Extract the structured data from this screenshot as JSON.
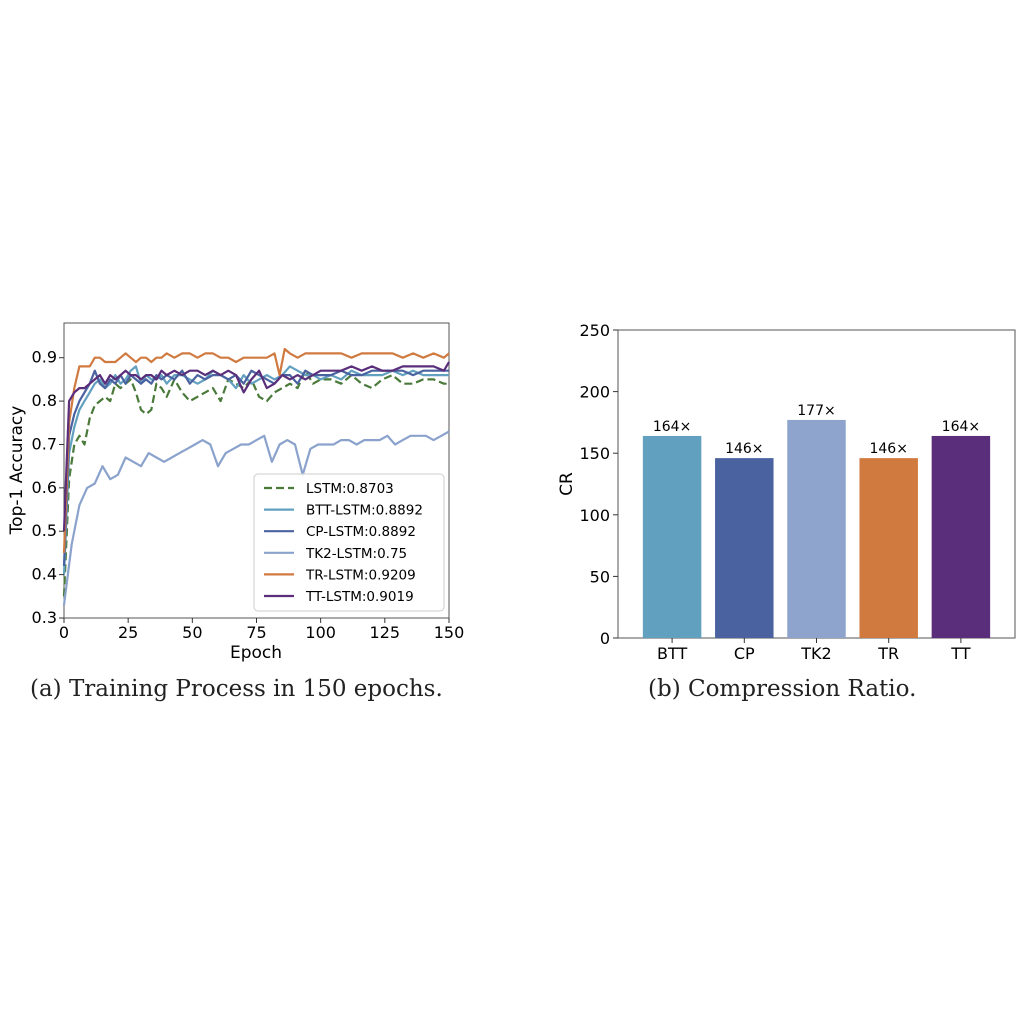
{
  "captions": {
    "a": "(a) Training Process in 150 epochs.",
    "b": "(b) Compression Ratio."
  },
  "chart_data": [
    {
      "type": "line",
      "xlabel": "Epoch",
      "ylabel": "Top-1 Accuracy",
      "xlim": [
        0,
        150
      ],
      "ylim": [
        0.3,
        0.98
      ],
      "xticks": [
        0,
        25,
        50,
        75,
        100,
        125,
        150
      ],
      "yticks": [
        0.3,
        0.4,
        0.5,
        0.6,
        0.7,
        0.8,
        0.9
      ],
      "grid": false,
      "legend_position": "lower-right",
      "series": [
        {
          "name": "LSTM:0.8703",
          "color": "#4a7a3a",
          "dash": "dashed",
          "x": [
            0,
            2,
            4,
            6,
            8,
            10,
            12,
            14,
            16,
            18,
            20,
            22,
            24,
            26,
            28,
            30,
            32,
            34,
            36,
            38,
            40,
            43,
            46,
            49,
            52,
            55,
            58,
            61,
            64,
            67,
            70,
            73,
            76,
            79,
            82,
            85,
            88,
            91,
            94,
            97,
            100,
            104,
            108,
            112,
            116,
            120,
            124,
            128,
            132,
            136,
            140,
            144,
            148,
            150
          ],
          "y": [
            0.35,
            0.62,
            0.7,
            0.72,
            0.7,
            0.76,
            0.79,
            0.8,
            0.81,
            0.8,
            0.84,
            0.83,
            0.84,
            0.85,
            0.82,
            0.78,
            0.77,
            0.78,
            0.84,
            0.83,
            0.81,
            0.85,
            0.82,
            0.8,
            0.81,
            0.82,
            0.83,
            0.8,
            0.85,
            0.84,
            0.83,
            0.85,
            0.81,
            0.8,
            0.82,
            0.83,
            0.84,
            0.83,
            0.87,
            0.84,
            0.85,
            0.85,
            0.84,
            0.86,
            0.84,
            0.83,
            0.85,
            0.86,
            0.84,
            0.84,
            0.85,
            0.85,
            0.84,
            0.84
          ]
        },
        {
          "name": "BTT-LSTM:0.8892",
          "color": "#62a0c0",
          "dash": "solid",
          "x": [
            0,
            2,
            4,
            6,
            8,
            10,
            12,
            14,
            16,
            18,
            20,
            22,
            24,
            26,
            28,
            30,
            32,
            34,
            36,
            38,
            40,
            43,
            46,
            49,
            52,
            55,
            58,
            61,
            64,
            67,
            70,
            73,
            76,
            79,
            82,
            85,
            88,
            91,
            94,
            97,
            100,
            104,
            108,
            112,
            116,
            120,
            124,
            128,
            132,
            136,
            140,
            144,
            148,
            150
          ],
          "y": [
            0.4,
            0.68,
            0.74,
            0.78,
            0.8,
            0.82,
            0.84,
            0.85,
            0.83,
            0.84,
            0.86,
            0.84,
            0.85,
            0.87,
            0.88,
            0.84,
            0.86,
            0.85,
            0.85,
            0.86,
            0.84,
            0.86,
            0.86,
            0.85,
            0.84,
            0.85,
            0.87,
            0.86,
            0.85,
            0.83,
            0.86,
            0.84,
            0.85,
            0.86,
            0.85,
            0.86,
            0.88,
            0.87,
            0.86,
            0.86,
            0.85,
            0.86,
            0.85,
            0.87,
            0.86,
            0.86,
            0.86,
            0.87,
            0.86,
            0.87,
            0.86,
            0.86,
            0.86,
            0.86
          ]
        },
        {
          "name": "CP-LSTM:0.8892",
          "color": "#4a62a0",
          "dash": "solid",
          "x": [
            0,
            2,
            4,
            6,
            8,
            10,
            12,
            14,
            16,
            18,
            20,
            22,
            24,
            26,
            28,
            30,
            32,
            34,
            36,
            38,
            40,
            43,
            46,
            49,
            52,
            55,
            58,
            61,
            64,
            67,
            70,
            73,
            76,
            79,
            82,
            85,
            88,
            91,
            94,
            97,
            100,
            104,
            108,
            112,
            116,
            120,
            124,
            128,
            132,
            136,
            140,
            144,
            148,
            150
          ],
          "y": [
            0.42,
            0.72,
            0.77,
            0.8,
            0.82,
            0.84,
            0.87,
            0.84,
            0.83,
            0.85,
            0.84,
            0.86,
            0.84,
            0.86,
            0.85,
            0.84,
            0.85,
            0.84,
            0.86,
            0.85,
            0.86,
            0.85,
            0.87,
            0.84,
            0.86,
            0.85,
            0.86,
            0.86,
            0.85,
            0.86,
            0.84,
            0.87,
            0.86,
            0.85,
            0.84,
            0.86,
            0.86,
            0.84,
            0.87,
            0.86,
            0.86,
            0.86,
            0.87,
            0.86,
            0.86,
            0.87,
            0.87,
            0.87,
            0.87,
            0.86,
            0.87,
            0.87,
            0.87,
            0.87
          ]
        },
        {
          "name": "TK2-LSTM:0.75",
          "color": "#8aa2cc",
          "dash": "solid",
          "x": [
            0,
            3,
            6,
            9,
            12,
            15,
            18,
            21,
            24,
            27,
            30,
            33,
            36,
            39,
            42,
            45,
            48,
            51,
            54,
            57,
            60,
            63,
            66,
            69,
            72,
            75,
            78,
            81,
            84,
            87,
            90,
            93,
            96,
            99,
            102,
            105,
            108,
            111,
            114,
            117,
            120,
            123,
            126,
            129,
            132,
            135,
            138,
            141,
            144,
            147,
            150
          ],
          "y": [
            0.33,
            0.47,
            0.56,
            0.6,
            0.61,
            0.65,
            0.62,
            0.63,
            0.67,
            0.66,
            0.65,
            0.68,
            0.67,
            0.66,
            0.67,
            0.68,
            0.69,
            0.7,
            0.71,
            0.7,
            0.65,
            0.68,
            0.69,
            0.7,
            0.7,
            0.71,
            0.72,
            0.66,
            0.7,
            0.71,
            0.7,
            0.63,
            0.69,
            0.7,
            0.7,
            0.7,
            0.71,
            0.71,
            0.7,
            0.71,
            0.71,
            0.71,
            0.72,
            0.7,
            0.71,
            0.72,
            0.72,
            0.72,
            0.71,
            0.72,
            0.73
          ]
        },
        {
          "name": "TR-LSTM:0.9209",
          "color": "#d07a40",
          "dash": "solid",
          "x": [
            0,
            2,
            4,
            6,
            8,
            10,
            12,
            14,
            16,
            18,
            20,
            22,
            24,
            26,
            28,
            30,
            32,
            34,
            36,
            38,
            40,
            43,
            46,
            49,
            52,
            55,
            58,
            61,
            64,
            67,
            70,
            73,
            76,
            79,
            82,
            84,
            86,
            88,
            91,
            94,
            97,
            100,
            104,
            108,
            112,
            116,
            120,
            124,
            128,
            132,
            136,
            140,
            144,
            148,
            150
          ],
          "y": [
            0.45,
            0.75,
            0.83,
            0.88,
            0.88,
            0.88,
            0.9,
            0.9,
            0.89,
            0.89,
            0.89,
            0.9,
            0.91,
            0.9,
            0.89,
            0.9,
            0.9,
            0.89,
            0.9,
            0.9,
            0.91,
            0.9,
            0.91,
            0.91,
            0.9,
            0.91,
            0.91,
            0.9,
            0.9,
            0.89,
            0.9,
            0.9,
            0.9,
            0.9,
            0.91,
            0.86,
            0.92,
            0.91,
            0.9,
            0.91,
            0.91,
            0.91,
            0.91,
            0.91,
            0.9,
            0.91,
            0.91,
            0.91,
            0.91,
            0.9,
            0.91,
            0.9,
            0.91,
            0.9,
            0.91
          ]
        },
        {
          "name": "TT-LSTM:0.9019",
          "color": "#5a2e7a",
          "dash": "solid",
          "x": [
            0,
            2,
            4,
            6,
            8,
            10,
            12,
            14,
            16,
            18,
            20,
            22,
            24,
            26,
            28,
            30,
            32,
            34,
            36,
            38,
            40,
            43,
            46,
            49,
            52,
            55,
            58,
            61,
            64,
            67,
            70,
            73,
            76,
            79,
            82,
            85,
            88,
            91,
            94,
            97,
            100,
            104,
            108,
            112,
            116,
            120,
            124,
            128,
            132,
            136,
            140,
            144,
            148,
            150
          ],
          "y": [
            0.5,
            0.8,
            0.82,
            0.83,
            0.83,
            0.84,
            0.85,
            0.86,
            0.84,
            0.86,
            0.85,
            0.86,
            0.87,
            0.86,
            0.86,
            0.85,
            0.86,
            0.86,
            0.85,
            0.87,
            0.86,
            0.87,
            0.86,
            0.87,
            0.87,
            0.86,
            0.87,
            0.86,
            0.87,
            0.86,
            0.82,
            0.85,
            0.87,
            0.83,
            0.84,
            0.86,
            0.85,
            0.86,
            0.85,
            0.86,
            0.87,
            0.87,
            0.87,
            0.88,
            0.87,
            0.88,
            0.87,
            0.87,
            0.88,
            0.88,
            0.88,
            0.88,
            0.87,
            0.89
          ]
        }
      ]
    },
    {
      "type": "bar",
      "xlabel": "",
      "ylabel": "CR",
      "categories": [
        "BTT",
        "CP",
        "TK2",
        "TR",
        "TT"
      ],
      "values": [
        164,
        146,
        177,
        146,
        164
      ],
      "bar_labels": [
        "164×",
        "146×",
        "177×",
        "146×",
        "164×"
      ],
      "colors": [
        "#62a0c0",
        "#4a62a0",
        "#8ea4cc",
        "#d07a40",
        "#5a2e7a"
      ],
      "ylim": [
        0,
        250
      ],
      "yticks": [
        0,
        50,
        100,
        150,
        200,
        250
      ],
      "grid": false
    }
  ]
}
